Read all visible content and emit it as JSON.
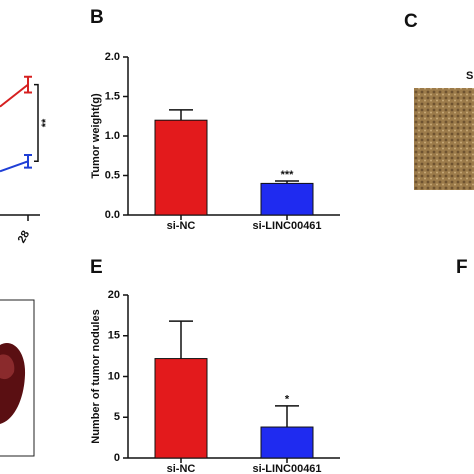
{
  "panels": {
    "b": "B",
    "c": "C",
    "c_sub": "S",
    "e": "E",
    "f": "F"
  },
  "chart_data": [
    {
      "type": "line",
      "xticks": [
        28
      ],
      "ylim": [
        0,
        2.0
      ],
      "series": [
        {
          "name": null,
          "color": "#d62020",
          "values": [
            1.65
          ],
          "errors": [
            0.1
          ]
        },
        {
          "name": null,
          "color": "#1f3fd6",
          "values": [
            0.68
          ],
          "errors": [
            0.08
          ]
        }
      ],
      "annotations": [
        "**"
      ]
    },
    {
      "type": "bar",
      "ylabel": "Tumor weight(g)",
      "categories": [
        "si-NC",
        "si-LINC00461"
      ],
      "values": [
        1.2,
        0.4
      ],
      "errors": [
        0.13,
        0.03
      ],
      "colors": [
        "#e31a1c",
        "#1f2bf0"
      ],
      "ylim": [
        0,
        2.0
      ],
      "yticks": [
        {
          "value": 0,
          "label": "0.0"
        },
        {
          "value": 0.5,
          "label": "0.5"
        },
        {
          "value": 1,
          "label": "1.0"
        },
        {
          "value": 1.5,
          "label": "1.5"
        },
        {
          "value": 2,
          "label": "2.0"
        }
      ],
      "annotations": [
        null,
        "***"
      ]
    },
    {
      "type": "bar",
      "ylabel": "Number of tumor nodules",
      "categories": [
        "si-NC",
        "si-LINC00461"
      ],
      "values": [
        12.2,
        3.8
      ],
      "errors": [
        4.6,
        2.6
      ],
      "colors": [
        "#e31a1c",
        "#1f2bf0"
      ],
      "ylim": [
        0,
        20
      ],
      "yticks": [
        0,
        5,
        10,
        15,
        20
      ],
      "annotations": [
        null,
        "*"
      ]
    }
  ]
}
